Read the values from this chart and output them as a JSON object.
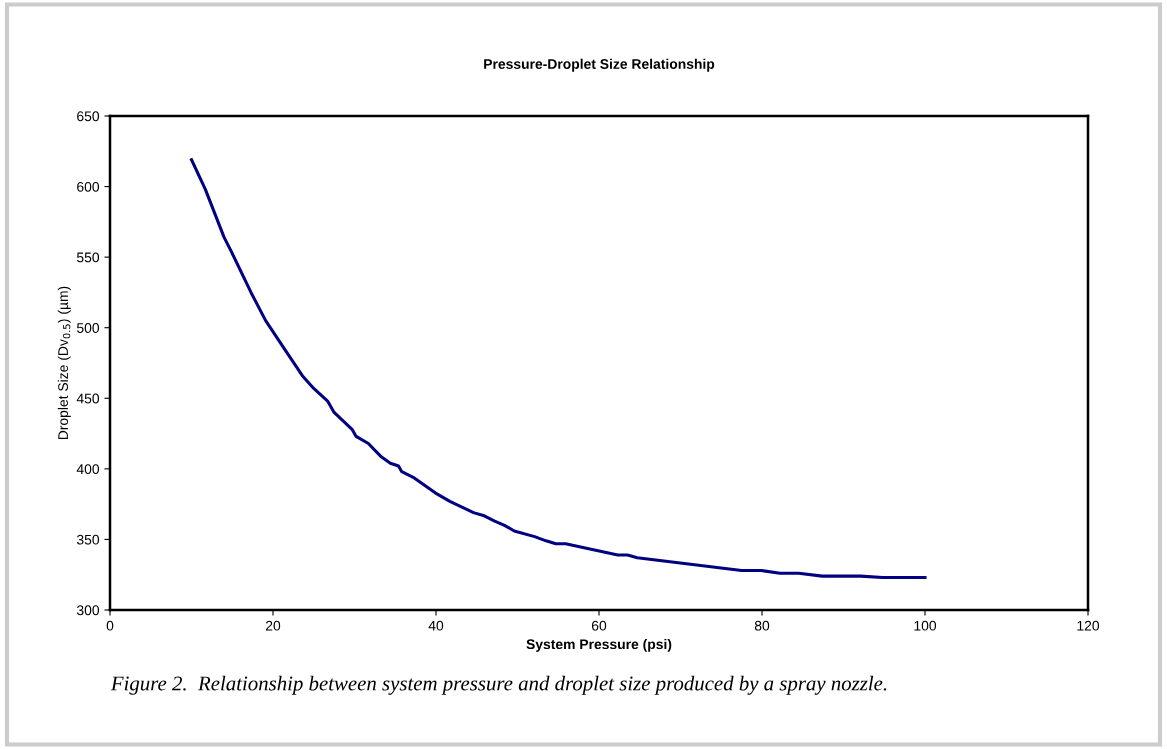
{
  "chart_data": {
    "type": "line",
    "title": "Pressure-Droplet Size Relationship",
    "xlabel": "System Pressure (psi)",
    "ylabel": "Droplet Size (Dv$_{0.5}$) (µm)",
    "annotations": [
      "Figure 2.  Relationship between system pressure and droplet size produced by a spray nozzle."
    ],
    "series": [
      {
        "color": "#000080",
        "x": [
          10,
          11.7,
          14.0,
          14.8,
          17.3,
          19.1,
          21.4,
          23.6,
          25.0,
          26.7,
          27.5,
          29.7,
          30.2,
          31.7,
          33.2,
          34.4,
          35.4,
          35.8,
          37.2,
          39.9,
          41.7,
          44.6,
          45.8,
          47.2,
          48.4,
          49.6,
          52.1,
          53.5,
          54.7,
          55.9,
          62.3,
          63.5,
          64.7,
          77.5,
          79.9,
          82.2,
          84.5,
          87.4,
          92.1,
          94.8,
          100
        ],
        "values": [
          619,
          598,
          564,
          555,
          525,
          505,
          485,
          466,
          457,
          448,
          440,
          428,
          423,
          418,
          409,
          404,
          402,
          398,
          394,
          383,
          377,
          369,
          367,
          363,
          360,
          356,
          352,
          349,
          347,
          347,
          339,
          339,
          337,
          328,
          328,
          326,
          326,
          324,
          324,
          323,
          323
        ]
      }
    ],
    "xlim": [
      0,
      120
    ],
    "xticks": [
      0,
      20,
      40,
      60,
      80,
      100,
      120
    ],
    "ylim": [
      300,
      650
    ],
    "yticks": [
      300,
      350,
      400,
      450,
      500,
      550,
      600,
      650
    ],
    "grid": false,
    "marker": "none",
    "line_style": "solid"
  }
}
